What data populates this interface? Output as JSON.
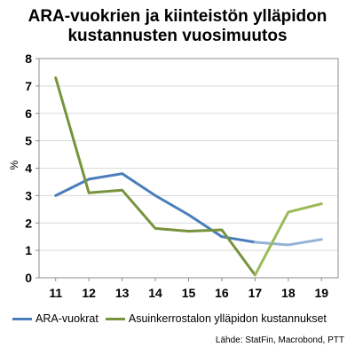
{
  "chart_data": {
    "type": "line",
    "title": [
      "ARA-vuokrien ja kiinteistön ylläpidon",
      "kustannusten vuosimuutos"
    ],
    "ylabel": "%",
    "xlabel": "",
    "ylim": [
      0,
      8
    ],
    "yticks": [
      "0",
      "1",
      "2",
      "3",
      "4",
      "5",
      "6",
      "7",
      "8"
    ],
    "xlim": [
      10.5,
      19.5
    ],
    "xticks": [
      "11",
      "12",
      "13",
      "14",
      "15",
      "16",
      "17",
      "18",
      "19"
    ],
    "grid": true,
    "legend_position": "bottom",
    "series": [
      {
        "name": "ARA-vuokrat",
        "color": "#4a7ebb",
        "forecast_color": "#95b3d7",
        "x": [
          11,
          12,
          13,
          14,
          15,
          16,
          17,
          18,
          19
        ],
        "values": [
          3.0,
          3.6,
          3.8,
          3.0,
          2.3,
          1.5,
          1.3,
          1.2,
          1.4
        ],
        "forecast_from_index": 6
      },
      {
        "name": "Asuinkerrostalon ylläpidon kustannukset",
        "color": "#77933c",
        "forecast_color": "#9bbb59",
        "x": [
          11,
          12,
          13,
          14,
          15,
          16,
          17,
          18,
          19
        ],
        "values": [
          7.3,
          3.1,
          3.2,
          1.8,
          1.7,
          1.75,
          0.1,
          2.4,
          2.7
        ],
        "forecast_from_index": 6
      }
    ],
    "source": "Lähde: StatFin, Macrobond, PTT"
  }
}
